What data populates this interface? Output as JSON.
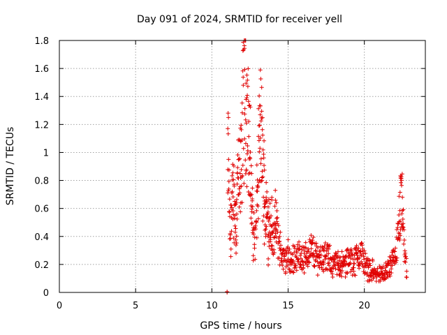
{
  "chart_data": {
    "type": "scatter",
    "title": "Day 091 of 2024, SRMTID for receiver yell",
    "xlabel": "GPS time / hours",
    "ylabel": "SRMTID / TECUs",
    "xlim": [
      0,
      24
    ],
    "ylim": [
      0,
      1.8
    ],
    "xticks": [
      0,
      5,
      10,
      15,
      20
    ],
    "xtick_labels": [
      "0",
      "5",
      "10",
      "15",
      "20"
    ],
    "yticks": [
      0,
      0.2,
      0.4,
      0.6,
      0.8,
      1,
      1.2,
      1.4,
      1.6,
      1.8
    ],
    "ytick_labels": [
      "0",
      "0.2",
      "0.4",
      "0.6",
      "0.8",
      "1",
      "1.2",
      "1.4",
      "1.6",
      "1.8"
    ],
    "grid": true,
    "marker": "+",
    "series_color": "#e00000",
    "series": [
      {
        "name": "SRMTID",
        "x_start": 11.0,
        "x_end": 22.8,
        "x_step": 0.03,
        "points": [
          [
            11.0,
            0.0
          ],
          [
            11.05,
            1.18
          ],
          [
            11.1,
            1.05
          ],
          [
            11.12,
            0.9
          ],
          [
            11.15,
            0.6
          ],
          [
            11.2,
            0.45
          ],
          [
            11.3,
            0.65
          ],
          [
            11.4,
            0.8
          ],
          [
            11.5,
            0.7
          ],
          [
            11.6,
            0.55
          ],
          [
            11.7,
            0.95
          ],
          [
            11.8,
            0.85
          ],
          [
            11.9,
            1.0
          ],
          [
            12.0,
            1.3
          ],
          [
            12.1,
            1.6
          ],
          [
            12.2,
            1.64
          ],
          [
            12.3,
            1.5
          ],
          [
            12.4,
            1.3
          ],
          [
            12.5,
            1.1
          ],
          [
            12.6,
            0.75
          ],
          [
            12.7,
            0.55
          ],
          [
            12.8,
            0.4
          ],
          [
            12.9,
            0.5
          ],
          [
            13.0,
            0.85
          ],
          [
            13.1,
            1.2
          ],
          [
            13.2,
            1.38
          ],
          [
            13.3,
            1.1
          ],
          [
            13.4,
            0.9
          ],
          [
            13.5,
            0.7
          ],
          [
            13.6,
            0.65
          ],
          [
            13.7,
            0.55
          ],
          [
            13.8,
            0.6
          ],
          [
            13.9,
            0.55
          ],
          [
            14.0,
            0.45
          ],
          [
            14.2,
            0.55
          ],
          [
            14.4,
            0.4
          ],
          [
            14.6,
            0.3
          ],
          [
            14.8,
            0.25
          ],
          [
            15.0,
            0.3
          ],
          [
            15.2,
            0.22
          ],
          [
            15.4,
            0.3
          ],
          [
            15.6,
            0.28
          ],
          [
            15.8,
            0.32
          ],
          [
            16.0,
            0.26
          ],
          [
            16.2,
            0.3
          ],
          [
            16.5,
            0.35
          ],
          [
            16.8,
            0.3
          ],
          [
            17.0,
            0.28
          ],
          [
            17.3,
            0.3
          ],
          [
            17.6,
            0.28
          ],
          [
            18.0,
            0.22
          ],
          [
            18.3,
            0.25
          ],
          [
            18.6,
            0.22
          ],
          [
            19.0,
            0.26
          ],
          [
            19.3,
            0.25
          ],
          [
            19.6,
            0.3
          ],
          [
            19.8,
            0.32
          ],
          [
            20.0,
            0.25
          ],
          [
            20.2,
            0.2
          ],
          [
            20.5,
            0.18
          ],
          [
            20.8,
            0.14
          ],
          [
            21.0,
            0.15
          ],
          [
            21.2,
            0.14
          ],
          [
            21.4,
            0.16
          ],
          [
            21.6,
            0.2
          ],
          [
            21.8,
            0.22
          ],
          [
            22.0,
            0.28
          ],
          [
            22.2,
            0.42
          ],
          [
            22.35,
            0.6
          ],
          [
            22.45,
            0.78
          ],
          [
            22.55,
            0.5
          ],
          [
            22.65,
            0.3
          ],
          [
            22.8,
            0.15
          ]
        ]
      }
    ]
  }
}
